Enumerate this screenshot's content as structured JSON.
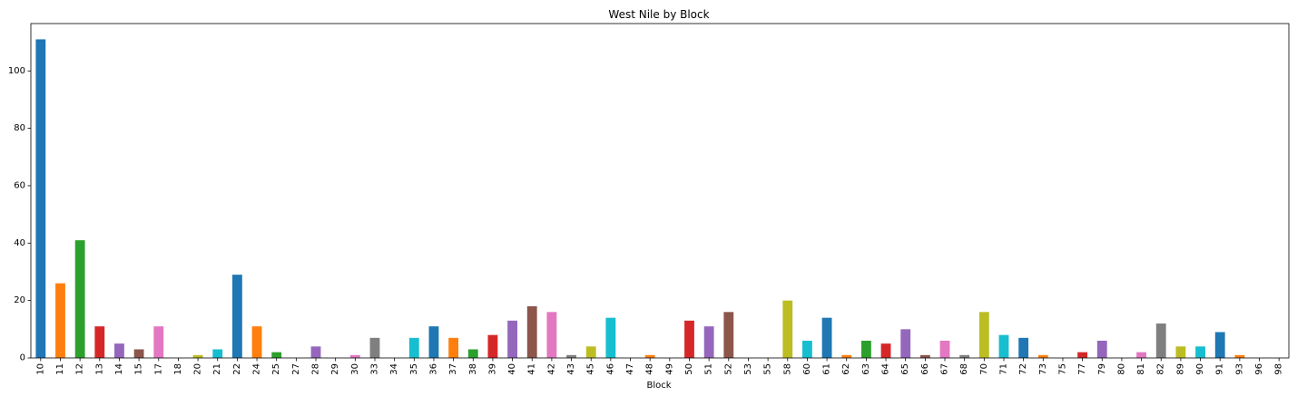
{
  "chart_data": {
    "type": "bar",
    "title": "West Nile by Block",
    "xlabel": "Block",
    "ylabel": "",
    "ylim": [
      0,
      116.5
    ],
    "yticks": [
      0,
      20,
      40,
      60,
      80,
      100
    ],
    "grid": false,
    "legend": false,
    "categories": [
      "10",
      "11",
      "12",
      "13",
      "14",
      "15",
      "17",
      "18",
      "20",
      "21",
      "22",
      "24",
      "25",
      "27",
      "28",
      "29",
      "30",
      "33",
      "34",
      "35",
      "36",
      "37",
      "38",
      "39",
      "40",
      "41",
      "42",
      "43",
      "45",
      "46",
      "47",
      "48",
      "49",
      "50",
      "51",
      "52",
      "53",
      "55",
      "58",
      "60",
      "61",
      "62",
      "63",
      "64",
      "65",
      "66",
      "67",
      "68",
      "70",
      "71",
      "72",
      "73",
      "75",
      "77",
      "79",
      "80",
      "81",
      "82",
      "89",
      "90",
      "91",
      "93",
      "96",
      "98"
    ],
    "values": [
      111,
      26,
      41,
      11,
      5,
      3,
      11,
      0,
      1,
      3,
      29,
      11,
      2,
      0,
      4,
      0,
      1,
      7,
      0,
      7,
      11,
      7,
      3,
      8,
      13,
      18,
      16,
      1,
      4,
      14,
      0,
      1,
      0,
      13,
      11,
      16,
      0,
      0,
      20,
      6,
      14,
      1,
      6,
      5,
      10,
      1,
      6,
      1,
      16,
      8,
      7,
      1,
      0,
      2,
      6,
      0,
      2,
      12,
      4,
      4,
      9,
      1,
      0,
      0
    ],
    "palette": [
      "#1f77b4",
      "#ff7f0e",
      "#2ca02c",
      "#d62728",
      "#9467bd",
      "#8c564b",
      "#e377c2",
      "#7f7f7f",
      "#bcbd22",
      "#17becf"
    ]
  }
}
